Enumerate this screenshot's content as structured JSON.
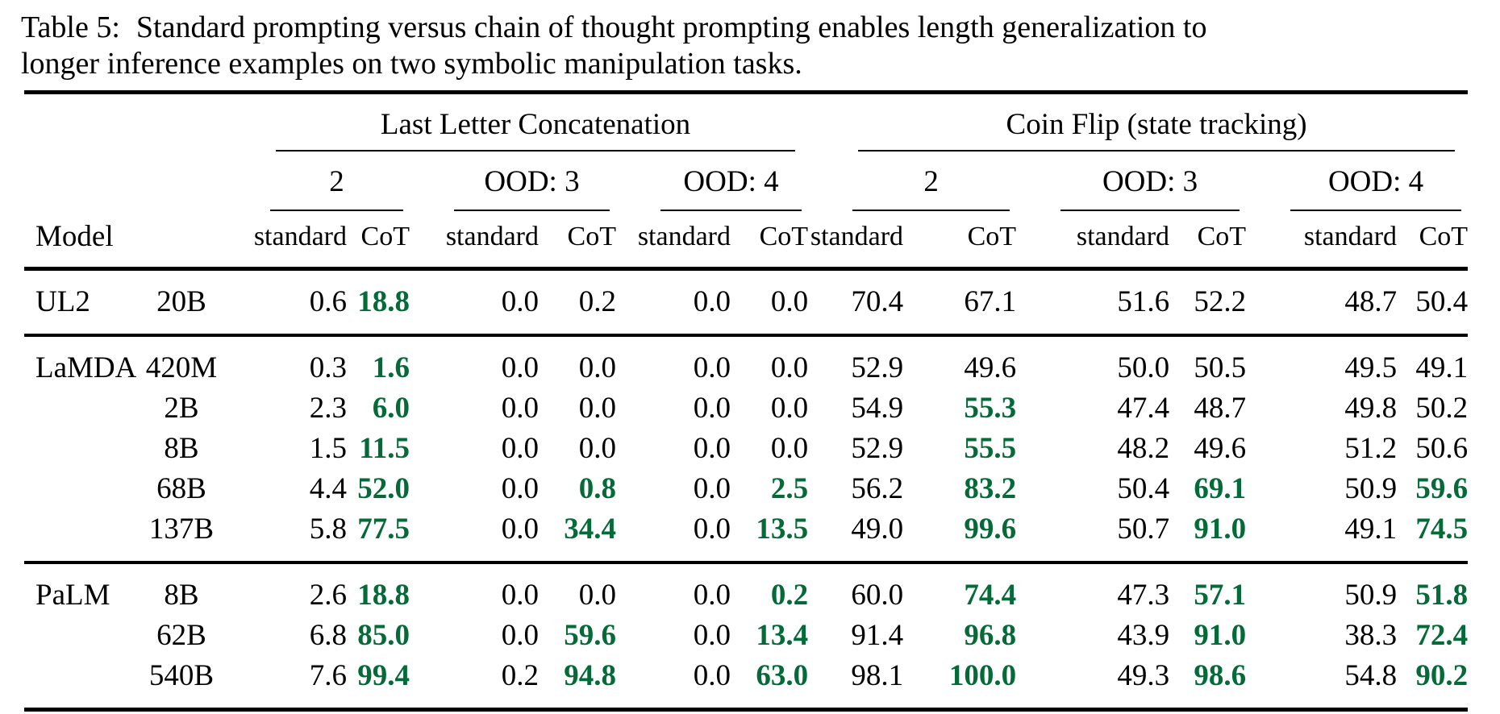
{
  "colors": {
    "highlight_green": "#046a38",
    "text": "#000000",
    "background": "#ffffff"
  },
  "caption": {
    "label": "Table 5:",
    "line1_rest": "Standard prompting versus chain of thought prompting enables length generalization to",
    "line2": "longer inference examples on two symbolic manipulation tasks."
  },
  "table": {
    "group_headers": [
      "Last Letter Concatenation",
      "Coin Flip (state tracking)"
    ],
    "sub_headers": [
      "2",
      "OOD: 3",
      "OOD: 4",
      "2",
      "OOD: 3",
      "OOD: 4"
    ],
    "model_header": "Model",
    "pair_labels": [
      "standard",
      "CoT"
    ],
    "groups": [
      {
        "family": "UL2",
        "rows": [
          {
            "size": "20B",
            "cells": [
              "0.6",
              "18.8",
              "0.0",
              "0.2",
              "0.0",
              "0.0",
              "70.4",
              "67.1",
              "51.6",
              "52.2",
              "48.7",
              "50.4"
            ],
            "hl": [
              1
            ]
          }
        ]
      },
      {
        "family": "LaMDA",
        "rows": [
          {
            "size": "420M",
            "cells": [
              "0.3",
              "1.6",
              "0.0",
              "0.0",
              "0.0",
              "0.0",
              "52.9",
              "49.6",
              "50.0",
              "50.5",
              "49.5",
              "49.1"
            ],
            "hl": [
              1
            ]
          },
          {
            "size": "2B",
            "cells": [
              "2.3",
              "6.0",
              "0.0",
              "0.0",
              "0.0",
              "0.0",
              "54.9",
              "55.3",
              "47.4",
              "48.7",
              "49.8",
              "50.2"
            ],
            "hl": [
              1,
              7
            ]
          },
          {
            "size": "8B",
            "cells": [
              "1.5",
              "11.5",
              "0.0",
              "0.0",
              "0.0",
              "0.0",
              "52.9",
              "55.5",
              "48.2",
              "49.6",
              "51.2",
              "50.6"
            ],
            "hl": [
              1,
              7
            ]
          },
          {
            "size": "68B",
            "cells": [
              "4.4",
              "52.0",
              "0.0",
              "0.8",
              "0.0",
              "2.5",
              "56.2",
              "83.2",
              "50.4",
              "69.1",
              "50.9",
              "59.6"
            ],
            "hl": [
              1,
              3,
              5,
              7,
              9,
              11
            ]
          },
          {
            "size": "137B",
            "cells": [
              "5.8",
              "77.5",
              "0.0",
              "34.4",
              "0.0",
              "13.5",
              "49.0",
              "99.6",
              "50.7",
              "91.0",
              "49.1",
              "74.5"
            ],
            "hl": [
              1,
              3,
              5,
              7,
              9,
              11
            ]
          }
        ]
      },
      {
        "family": "PaLM",
        "rows": [
          {
            "size": "8B",
            "cells": [
              "2.6",
              "18.8",
              "0.0",
              "0.0",
              "0.0",
              "0.2",
              "60.0",
              "74.4",
              "47.3",
              "57.1",
              "50.9",
              "51.8"
            ],
            "hl": [
              1,
              5,
              7,
              9,
              11
            ]
          },
          {
            "size": "62B",
            "cells": [
              "6.8",
              "85.0",
              "0.0",
              "59.6",
              "0.0",
              "13.4",
              "91.4",
              "96.8",
              "43.9",
              "91.0",
              "38.3",
              "72.4"
            ],
            "hl": [
              1,
              3,
              5,
              7,
              9,
              11
            ]
          },
          {
            "size": "540B",
            "cells": [
              "7.6",
              "99.4",
              "0.2",
              "94.8",
              "0.0",
              "63.0",
              "98.1",
              "100.0",
              "49.3",
              "98.6",
              "54.8",
              "90.2"
            ],
            "hl": [
              1,
              3,
              5,
              7,
              9,
              11
            ]
          }
        ]
      }
    ]
  }
}
